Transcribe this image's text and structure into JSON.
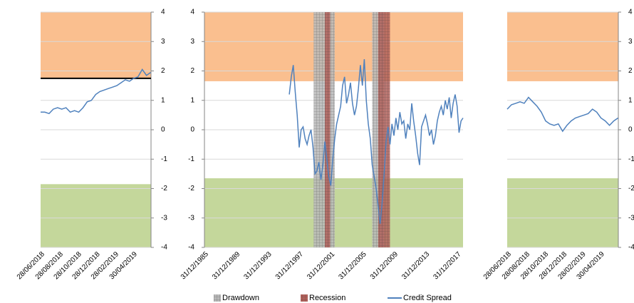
{
  "chart_data": [
    {
      "type": "line",
      "ylim": [
        -4,
        4
      ],
      "yticks": [
        -4,
        -3,
        -2,
        -1,
        0,
        1,
        2,
        3,
        4
      ],
      "yaxis_side": "right",
      "grid": true,
      "xlim": [
        "2018-06-28",
        "2019-06-28"
      ],
      "xticks": [
        {
          "value": "2018-06-28",
          "label": "28/06/2018"
        },
        {
          "value": "2018-08-28",
          "label": "28/08/2018"
        },
        {
          "value": "2018-10-28",
          "label": "28/10/2018"
        },
        {
          "value": "2018-12-28",
          "label": "28/12/2018"
        },
        {
          "value": "2019-02-28",
          "label": "28/02/2019"
        },
        {
          "value": "2019-04-30",
          "label": "30/04/2019"
        }
      ],
      "bands": [
        {
          "range": [
            1.75,
            4
          ],
          "color": "#fabf8f"
        },
        {
          "range": [
            -4,
            -1.85
          ],
          "color": "#c4d79b"
        }
      ],
      "hline": {
        "value": 1.75,
        "color": "#000000"
      },
      "x": [
        "2018-06-28",
        "2018-07-12",
        "2018-07-26",
        "2018-08-09",
        "2018-08-23",
        "2018-09-06",
        "2018-09-20",
        "2018-10-04",
        "2018-10-18",
        "2018-11-01",
        "2018-11-15",
        "2018-11-29",
        "2018-12-13",
        "2018-12-27",
        "2019-01-10",
        "2019-01-24",
        "2019-02-07",
        "2019-02-21",
        "2019-03-07",
        "2019-03-21",
        "2019-04-04",
        "2019-04-18",
        "2019-05-02",
        "2019-05-16",
        "2019-05-30",
        "2019-06-13",
        "2019-06-27"
      ],
      "series": [
        {
          "color": "#4f81bd",
          "values": [
            0.6,
            0.6,
            0.55,
            0.7,
            0.75,
            0.7,
            0.75,
            0.6,
            0.65,
            0.6,
            0.75,
            0.95,
            1.0,
            1.2,
            1.3,
            1.35,
            1.4,
            1.45,
            1.5,
            1.6,
            1.7,
            1.65,
            1.75,
            1.8,
            2.05,
            1.85,
            1.95
          ]
        }
      ]
    },
    {
      "type": "line",
      "ylim": [
        -4,
        4
      ],
      "yticks": [
        -4,
        -3,
        -2,
        -1,
        0,
        1,
        2,
        3,
        4
      ],
      "yaxis_side": "left",
      "grid": true,
      "xlim": [
        "1985-12-31",
        "2018-09-30"
      ],
      "xticks": [
        {
          "value": "1985-12-31",
          "label": "31/12/1985"
        },
        {
          "value": "1989-12-31",
          "label": "31/12/1989"
        },
        {
          "value": "1993-12-31",
          "label": "31/12/1993"
        },
        {
          "value": "1997-12-31",
          "label": "31/12/1997"
        },
        {
          "value": "2001-12-31",
          "label": "31/12/2001"
        },
        {
          "value": "2005-12-31",
          "label": "31/12/2005"
        },
        {
          "value": "2009-12-31",
          "label": "31/12/2009"
        },
        {
          "value": "2013-12-31",
          "label": "31/12/2013"
        },
        {
          "value": "2017-12-31",
          "label": "31/12/2017"
        }
      ],
      "bands": [
        {
          "range": [
            1.65,
            4
          ],
          "color": "#fabf8f"
        },
        {
          "range": [
            -4,
            -1.65
          ],
          "color": "#c4d79b"
        }
      ],
      "periods": [
        {
          "name": "Drawdown",
          "color": "#b8b8b8",
          "ranges": [
            [
              "1999-10-31",
              "2002-06-30"
            ],
            [
              "2007-03-31",
              "2008-09-30"
            ]
          ]
        },
        {
          "name": "Recession",
          "color": "#b0605a",
          "ranges": [
            [
              "2001-03-31",
              "2001-11-30"
            ],
            [
              "2007-12-31",
              "2009-06-30"
            ]
          ]
        }
      ],
      "legend": true,
      "x": [
        "1996-09-30",
        "1996-12-31",
        "1997-03-31",
        "1997-06-30",
        "1997-09-30",
        "1997-12-31",
        "1998-03-31",
        "1998-06-30",
        "1998-09-30",
        "1998-12-31",
        "1999-03-31",
        "1999-06-30",
        "1999-09-30",
        "1999-12-31",
        "2000-03-31",
        "2000-06-30",
        "2000-09-30",
        "2000-12-31",
        "2001-03-31",
        "2001-06-30",
        "2001-09-30",
        "2001-12-31",
        "2002-03-31",
        "2002-06-30",
        "2002-09-30",
        "2002-12-31",
        "2003-03-31",
        "2003-06-30",
        "2003-09-30",
        "2003-12-31",
        "2004-03-31",
        "2004-06-30",
        "2004-09-30",
        "2004-12-31",
        "2005-03-31",
        "2005-06-30",
        "2005-09-30",
        "2005-12-31",
        "2006-03-31",
        "2006-06-30",
        "2006-09-30",
        "2006-12-31",
        "2007-03-31",
        "2007-06-30",
        "2007-09-30",
        "2007-12-31",
        "2008-03-31",
        "2008-06-30",
        "2008-09-30",
        "2008-12-31",
        "2009-03-31",
        "2009-06-30",
        "2009-09-30",
        "2009-12-31",
        "2010-03-31",
        "2010-06-30",
        "2010-09-30",
        "2010-12-31",
        "2011-03-31",
        "2011-06-30",
        "2011-09-30",
        "2011-12-31",
        "2012-03-31",
        "2012-06-30",
        "2012-09-30",
        "2012-12-31",
        "2013-03-31",
        "2013-06-30",
        "2013-09-30",
        "2013-12-31",
        "2014-03-31",
        "2014-06-30",
        "2014-09-30",
        "2014-12-31",
        "2015-03-31",
        "2015-06-30",
        "2015-09-30",
        "2015-12-31",
        "2016-03-31",
        "2016-06-30",
        "2016-09-30",
        "2016-12-31",
        "2017-03-31",
        "2017-06-30",
        "2017-09-30",
        "2017-12-31",
        "2018-03-31",
        "2018-06-30",
        "2018-09-30"
      ],
      "series": [
        {
          "name": "Credit Spread",
          "color": "#4f81bd",
          "values": [
            1.2,
            1.8,
            2.2,
            1.3,
            0.5,
            -0.6,
            0.0,
            0.1,
            -0.3,
            -0.5,
            -0.2,
            0.0,
            -0.6,
            -1.5,
            -1.4,
            -1.1,
            -1.7,
            -1.2,
            -0.4,
            -1.0,
            -1.6,
            -1.9,
            -1.0,
            -0.3,
            0.2,
            0.5,
            0.8,
            1.5,
            1.8,
            0.9,
            1.2,
            1.6,
            0.9,
            0.5,
            0.8,
            1.4,
            2.2,
            1.5,
            2.4,
            1.0,
            0.2,
            -0.3,
            -1.2,
            -1.6,
            -2.0,
            -2.6,
            -3.2,
            -2.5,
            -1.5,
            -0.4,
            0.1,
            -0.5,
            0.2,
            -0.2,
            0.4,
            0.0,
            0.6,
            0.2,
            0.3,
            -0.3,
            0.2,
            0.0,
            0.9,
            0.3,
            -0.2,
            -0.8,
            -1.2,
            0.1,
            0.3,
            0.5,
            0.2,
            -0.2,
            0.0,
            -0.5,
            -0.2,
            0.3,
            0.6,
            0.8,
            0.5,
            1.0,
            0.7,
            1.1,
            0.4,
            0.9,
            1.2,
            0.8,
            -0.1,
            0.3,
            0.4
          ]
        }
      ]
    },
    {
      "type": "line",
      "ylim": [
        -4,
        4
      ],
      "yticks": [
        -4,
        -3,
        -2,
        -1,
        0,
        1,
        2,
        3,
        4
      ],
      "yaxis_side": "right",
      "grid": true,
      "xlim": [
        "2018-06-28",
        "2019-06-28"
      ],
      "xticks": [
        {
          "value": "2018-06-28",
          "label": "28/06/2018"
        },
        {
          "value": "2018-08-28",
          "label": "28/08/2018"
        },
        {
          "value": "2018-10-28",
          "label": "28/10/2018"
        },
        {
          "value": "2018-12-28",
          "label": "28/12/2018"
        },
        {
          "value": "2019-02-28",
          "label": "28/02/2019"
        },
        {
          "value": "2019-04-30",
          "label": "30/04/2019"
        }
      ],
      "bands": [
        {
          "range": [
            1.65,
            4
          ],
          "color": "#fabf8f"
        },
        {
          "range": [
            -4,
            -1.65
          ],
          "color": "#c4d79b"
        }
      ],
      "x": [
        "2018-06-28",
        "2018-07-12",
        "2018-07-26",
        "2018-08-09",
        "2018-08-23",
        "2018-09-06",
        "2018-09-20",
        "2018-10-04",
        "2018-10-18",
        "2018-11-01",
        "2018-11-15",
        "2018-11-29",
        "2018-12-13",
        "2018-12-27",
        "2019-01-10",
        "2019-01-24",
        "2019-02-07",
        "2019-02-21",
        "2019-03-07",
        "2019-03-21",
        "2019-04-04",
        "2019-04-18",
        "2019-05-02",
        "2019-05-16",
        "2019-05-30",
        "2019-06-13",
        "2019-06-27"
      ],
      "series": [
        {
          "color": "#4f81bd",
          "values": [
            0.7,
            0.85,
            0.9,
            0.95,
            0.9,
            1.1,
            0.95,
            0.8,
            0.6,
            0.3,
            0.2,
            0.15,
            0.2,
            -0.05,
            0.15,
            0.3,
            0.4,
            0.45,
            0.5,
            0.55,
            0.7,
            0.6,
            0.4,
            0.3,
            0.15,
            0.3,
            0.4
          ]
        }
      ]
    }
  ]
}
